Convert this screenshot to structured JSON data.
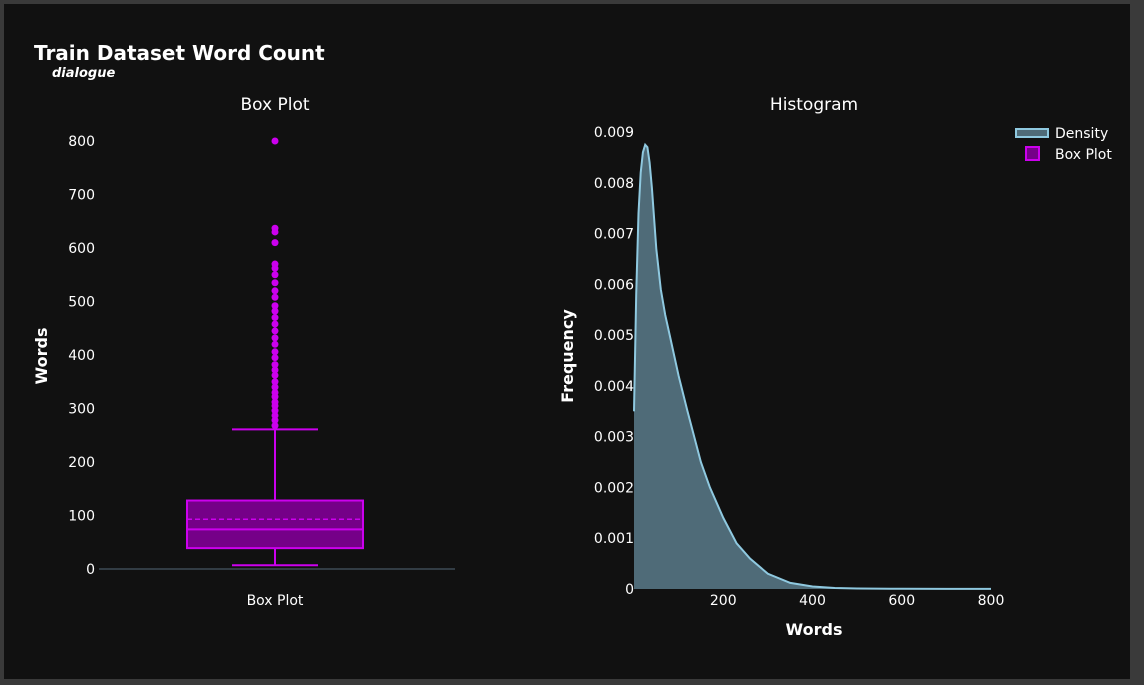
{
  "title": "Train Dataset Word Count",
  "subtitle": "dialogue",
  "colors": {
    "box": "#cc00ee",
    "box_fill": "#750088",
    "density_line": "#8fc9e0",
    "density_fill": "#4f6b78",
    "background": "#111111"
  },
  "legend": {
    "placement": "top-right",
    "items": [
      "Density",
      "Box Plot"
    ]
  },
  "chart_data": [
    {
      "type": "box",
      "title": "Box Plot",
      "categories": [
        "Box Plot"
      ],
      "ylabel": "Words",
      "xlabel": "",
      "ylim": [
        0,
        800
      ],
      "yticks": [
        0,
        100,
        200,
        300,
        400,
        500,
        600,
        700,
        800
      ],
      "stats": {
        "lower_fence": 7,
        "q1": 39,
        "median": 74,
        "mean": 93,
        "q3": 128,
        "upper_fence": 261
      },
      "outliers": [
        268,
        278,
        287,
        296,
        305,
        312,
        322,
        330,
        340,
        350,
        362,
        372,
        382,
        395,
        406,
        420,
        432,
        445,
        458,
        470,
        482,
        492,
        508,
        520,
        535,
        550,
        562,
        570,
        610,
        630,
        637,
        800
      ]
    },
    {
      "type": "area",
      "title": "Histogram",
      "series": [
        {
          "name": "Density"
        }
      ],
      "xlabel": "Words",
      "ylabel": "Frequency",
      "xlim": [
        0,
        800
      ],
      "ylim": [
        0,
        0.009
      ],
      "xticks": [
        200,
        400,
        600,
        800
      ],
      "yticks": [
        "0",
        "0.001",
        "0.002",
        "0.003",
        "0.004",
        "0.005",
        "0.006",
        "0.007",
        "0.008",
        "0.009"
      ],
      "x": [
        0,
        5,
        10,
        15,
        20,
        25,
        30,
        35,
        40,
        45,
        50,
        60,
        70,
        80,
        100,
        120,
        150,
        170,
        200,
        230,
        260,
        300,
        350,
        400,
        450,
        500,
        600,
        700,
        800
      ],
      "y": [
        0.0035,
        0.0058,
        0.0074,
        0.0082,
        0.0086,
        0.00875,
        0.0087,
        0.0084,
        0.0079,
        0.0073,
        0.0067,
        0.0059,
        0.0054,
        0.005,
        0.0042,
        0.0035,
        0.0025,
        0.002,
        0.0014,
        0.0009,
        0.0006,
        0.0003,
        0.00012,
        5e-05,
        2e-05,
        1e-05,
        4e-06,
        2e-06,
        1e-06
      ]
    }
  ]
}
